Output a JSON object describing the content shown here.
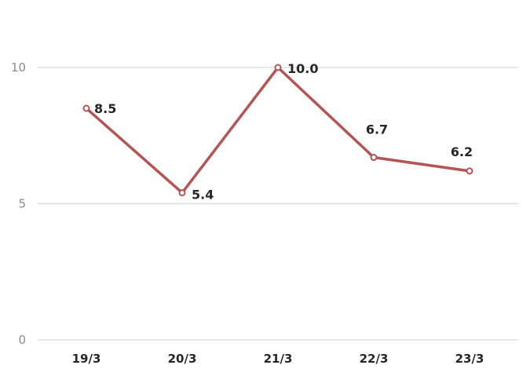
{
  "chart_data": {
    "type": "line",
    "categories": [
      "19/3",
      "20/3",
      "21/3",
      "22/3",
      "23/3"
    ],
    "values": [
      8.5,
      5.4,
      10.0,
      6.7,
      6.2
    ],
    "value_labels": [
      "8.5",
      "5.4",
      "10.0",
      "6.7",
      "6.2"
    ],
    "ylim": [
      0,
      10
    ],
    "yticks": [
      "0",
      "5",
      "10"
    ],
    "grid": true,
    "legend": "none",
    "line_color": "#b45554",
    "marker_fill": "#ffffff"
  }
}
